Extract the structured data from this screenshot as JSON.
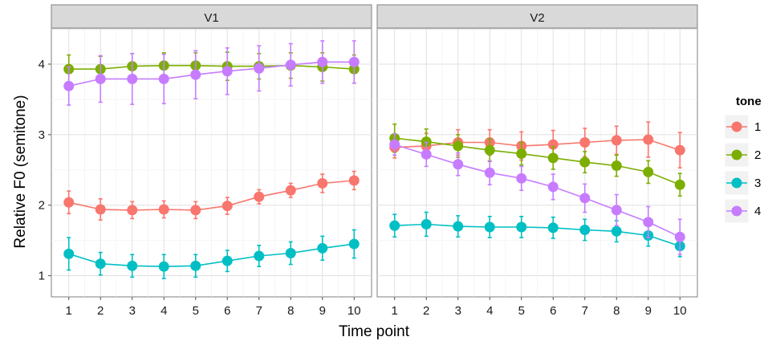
{
  "chart_data": {
    "type": "line",
    "xlabel": "Time point",
    "ylabel": "Relative F0 (semitone)",
    "x": [
      1,
      2,
      3,
      4,
      5,
      6,
      7,
      8,
      9,
      10
    ],
    "ylim": [
      0.7,
      4.5
    ],
    "y_ticks": [
      1,
      2,
      3,
      4
    ],
    "grid": true,
    "legend": {
      "title": "tone",
      "position": "right",
      "entries": [
        "1",
        "2",
        "3",
        "4"
      ]
    },
    "colors": {
      "1": "#f8766d",
      "2": "#7cae00",
      "3": "#00bfc4",
      "4": "#c77cff"
    },
    "panels": [
      {
        "label": "V1",
        "series": [
          {
            "name": "1",
            "values": [
              2.04,
              1.94,
              1.93,
              1.94,
              1.93,
              1.99,
              2.12,
              2.21,
              2.31,
              2.35
            ],
            "errors": [
              0.16,
              0.15,
              0.12,
              0.12,
              0.12,
              0.12,
              0.1,
              0.1,
              0.13,
              0.13
            ]
          },
          {
            "name": "2",
            "values": [
              3.93,
              3.93,
              3.97,
              3.98,
              3.98,
              3.97,
              3.97,
              3.98,
              3.96,
              3.93
            ],
            "errors": [
              0.2,
              0.18,
              0.18,
              0.18,
              0.18,
              0.2,
              0.18,
              0.18,
              0.2,
              0.2
            ]
          },
          {
            "name": "3",
            "values": [
              1.31,
              1.17,
              1.14,
              1.13,
              1.14,
              1.21,
              1.28,
              1.32,
              1.39,
              1.45
            ],
            "errors": [
              0.23,
              0.16,
              0.16,
              0.17,
              0.16,
              0.15,
              0.15,
              0.16,
              0.17,
              0.2
            ]
          },
          {
            "name": "4",
            "values": [
              3.69,
              3.79,
              3.79,
              3.79,
              3.85,
              3.9,
              3.94,
              3.99,
              4.03,
              4.03
            ],
            "errors": [
              0.27,
              0.33,
              0.36,
              0.35,
              0.34,
              0.33,
              0.32,
              0.3,
              0.3,
              0.3
            ]
          }
        ]
      },
      {
        "label": "V2",
        "series": [
          {
            "name": "1",
            "values": [
              2.82,
              2.84,
              2.89,
              2.89,
              2.84,
              2.86,
              2.89,
              2.92,
              2.93,
              2.78
            ],
            "errors": [
              0.15,
              0.18,
              0.18,
              0.18,
              0.2,
              0.2,
              0.2,
              0.2,
              0.25,
              0.25
            ]
          },
          {
            "name": "2",
            "values": [
              2.95,
              2.9,
              2.84,
              2.78,
              2.73,
              2.67,
              2.61,
              2.56,
              2.47,
              2.29
            ],
            "errors": [
              0.2,
              0.18,
              0.16,
              0.16,
              0.16,
              0.16,
              0.15,
              0.15,
              0.16,
              0.16
            ]
          },
          {
            "name": "3",
            "values": [
              1.71,
              1.73,
              1.7,
              1.69,
              1.69,
              1.68,
              1.65,
              1.63,
              1.57,
              1.42
            ],
            "errors": [
              0.16,
              0.17,
              0.15,
              0.15,
              0.15,
              0.15,
              0.15,
              0.15,
              0.15,
              0.15
            ]
          },
          {
            "name": "4",
            "values": [
              2.86,
              2.72,
              2.58,
              2.46,
              2.38,
              2.26,
              2.1,
              1.93,
              1.76,
              1.55
            ],
            "errors": [
              0.15,
              0.17,
              0.16,
              0.17,
              0.17,
              0.18,
              0.2,
              0.22,
              0.22,
              0.25
            ]
          }
        ]
      }
    ]
  }
}
